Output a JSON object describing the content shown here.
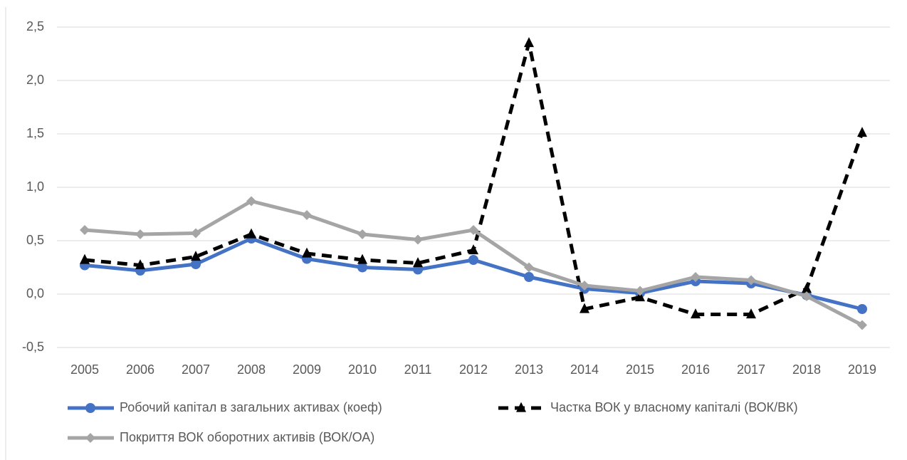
{
  "chart_data": {
    "type": "line",
    "categories": [
      "2005",
      "2006",
      "2007",
      "2008",
      "2009",
      "2010",
      "2011",
      "2012",
      "2013",
      "2014",
      "2015",
      "2016",
      "2017",
      "2018",
      "2019"
    ],
    "series": [
      {
        "name": "Робочий капітал в загальних активах (коеф)",
        "color": "#4472c4",
        "marker": "circle",
        "dash": false,
        "values": [
          0.27,
          0.22,
          0.28,
          0.52,
          0.33,
          0.25,
          0.23,
          0.32,
          0.16,
          0.05,
          0.01,
          0.12,
          0.1,
          -0.01,
          -0.14
        ]
      },
      {
        "name": "Частка ВОК у власному капіталі (ВОК/ВК)",
        "color": "#000000",
        "marker": "triangle",
        "dash": true,
        "values": [
          0.32,
          0.27,
          0.35,
          0.56,
          0.38,
          0.32,
          0.29,
          0.41,
          2.35,
          -0.14,
          -0.03,
          -0.19,
          -0.19,
          0.05,
          1.51
        ]
      },
      {
        "name": "Покриття ВОК оборотних активів (ВОК/ОА)",
        "color": "#a5a5a5",
        "marker": "diamond",
        "dash": false,
        "values": [
          0.6,
          0.56,
          0.57,
          0.87,
          0.74,
          0.56,
          0.51,
          0.6,
          0.25,
          0.08,
          0.03,
          0.16,
          0.13,
          -0.02,
          -0.29
        ]
      }
    ],
    "ylim": [
      -0.5,
      2.5
    ],
    "yticks": [
      {
        "value": -0.5,
        "label": "-0,5"
      },
      {
        "value": 0,
        "label": "0,0"
      },
      {
        "value": 0.5,
        "label": "0,5"
      },
      {
        "value": 1,
        "label": "1,0"
      },
      {
        "value": 1.5,
        "label": "1,5"
      },
      {
        "value": 2,
        "label": "2,0"
      },
      {
        "value": 2.5,
        "label": "2,5"
      }
    ],
    "grid": true,
    "legend": "bottom"
  }
}
